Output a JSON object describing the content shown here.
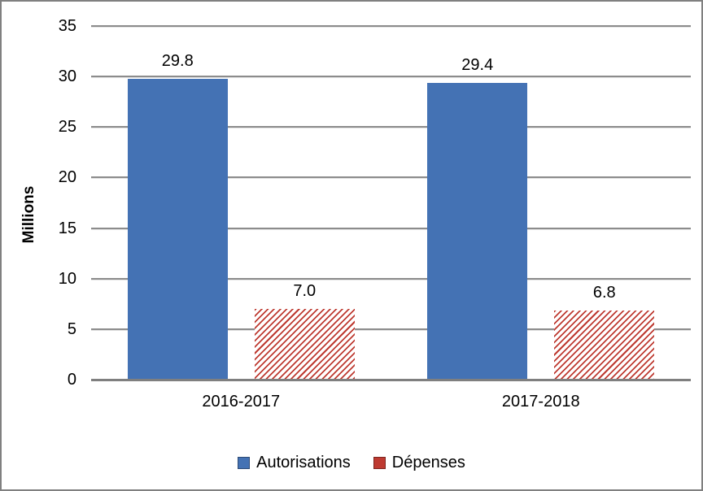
{
  "chart_data": {
    "type": "bar",
    "title": "",
    "ylabel": "Millions",
    "xlabel": "",
    "categories": [
      "2016-2017",
      "2017-2018"
    ],
    "series": [
      {
        "name": "Autorisations",
        "values": [
          29.8,
          29.4
        ],
        "labels": [
          "29.8",
          "29.4"
        ],
        "color": "#4472B4",
        "fill": "solid"
      },
      {
        "name": "Dépenses",
        "values": [
          7.0,
          6.8
        ],
        "labels": [
          "7.0",
          "6.8"
        ],
        "color": "#BE3A31",
        "fill": "diagonal-hatch"
      }
    ],
    "ylim": [
      0,
      35
    ],
    "ytick_step": 5,
    "yticks": [
      "0",
      "5",
      "10",
      "15",
      "20",
      "25",
      "30",
      "35"
    ],
    "grid": true,
    "legend_position": "bottom"
  },
  "colors": {
    "autorisations": "#4472B4",
    "depenses": "#BE3A31",
    "gridline": "#8C8C8C",
    "axis_line": "#7F7F7F",
    "frame_border": "#808080",
    "text": "#000000",
    "background": "#FFFFFF"
  }
}
